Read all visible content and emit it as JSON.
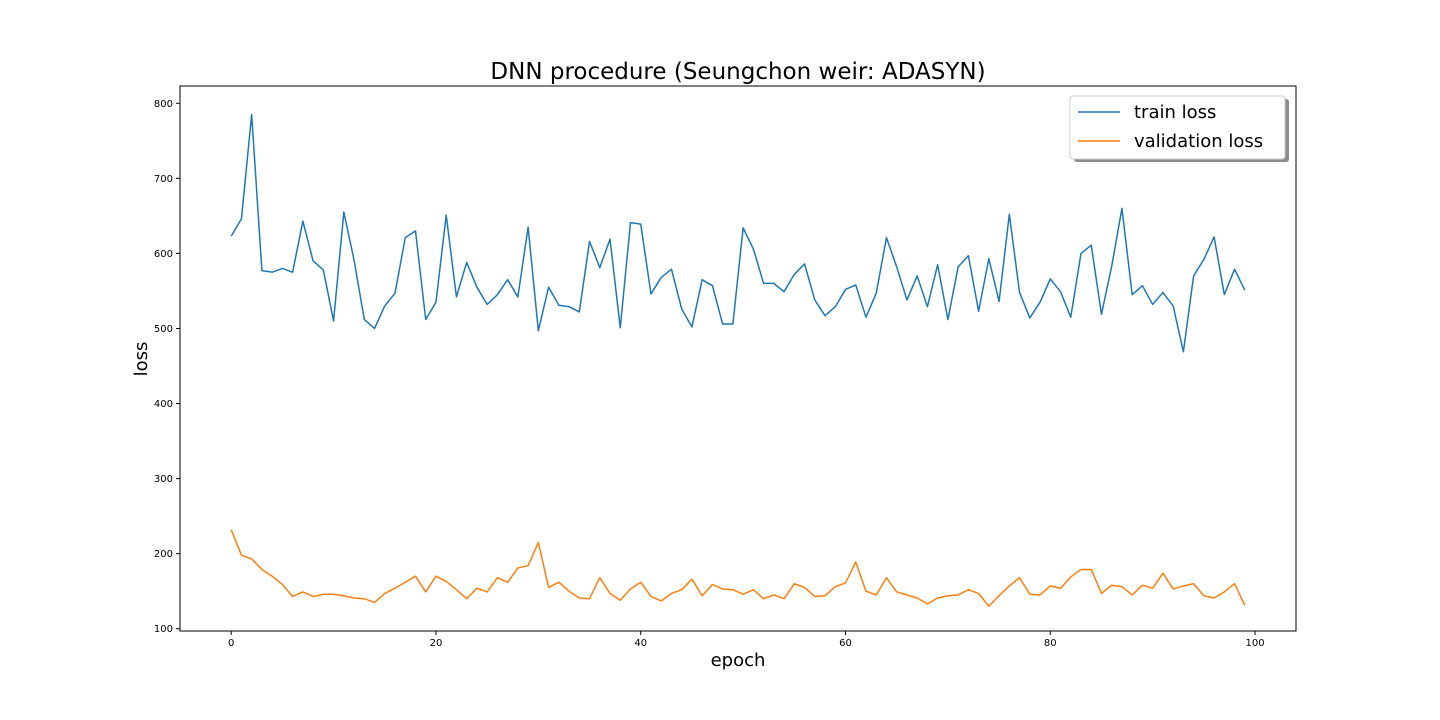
{
  "chart_data": {
    "type": "line",
    "title": "DNN procedure (Seungchon weir: ADASYN)",
    "xlabel": "epoch",
    "ylabel": "loss",
    "xlim": [
      -5,
      104
    ],
    "ylim": [
      97,
      823
    ],
    "xticks": [
      0,
      20,
      40,
      60,
      80,
      100
    ],
    "yticks": [
      100,
      200,
      300,
      400,
      500,
      600,
      700,
      800
    ],
    "grid": false,
    "legend": "top-right",
    "series": [
      {
        "name": "train loss",
        "color": "#1f77b4",
        "values": [
          623,
          646,
          785,
          577,
          575,
          580,
          575,
          643,
          590,
          578,
          510,
          655,
          591,
          512,
          500,
          530,
          547,
          621,
          630,
          512,
          535,
          651,
          542,
          588,
          555,
          532,
          545,
          565,
          542,
          635,
          497,
          555,
          531,
          529,
          522,
          616,
          581,
          619,
          501,
          641,
          639,
          546,
          568,
          579,
          526,
          502,
          565,
          557,
          506,
          506,
          634,
          606,
          560,
          560,
          549,
          572,
          586,
          538,
          517,
          529,
          552,
          558,
          515,
          547,
          621,
          582,
          538,
          570,
          529,
          585,
          512,
          582,
          597,
          523,
          593,
          536,
          652,
          548,
          514,
          535,
          566,
          549,
          515,
          600,
          611,
          519,
          583,
          660,
          545,
          557,
          532,
          548,
          530,
          469,
          570,
          592,
          622,
          545,
          579,
          551
        ]
      },
      {
        "name": "validation loss",
        "color": "#ff7f0e",
        "values": [
          232,
          198,
          193,
          179,
          170,
          159,
          143,
          149,
          143,
          146,
          146,
          144,
          141,
          140,
          135,
          147,
          154,
          162,
          170,
          149,
          170,
          163,
          152,
          140,
          154,
          149,
          168,
          162,
          181,
          184,
          215,
          155,
          162,
          150,
          141,
          140,
          168,
          147,
          138,
          153,
          162,
          143,
          137,
          147,
          152,
          166,
          144,
          159,
          153,
          152,
          146,
          152,
          140,
          145,
          140,
          160,
          155,
          143,
          144,
          156,
          161,
          189,
          150,
          145,
          168,
          149,
          145,
          141,
          133,
          141,
          144,
          145,
          152,
          147,
          130,
          144,
          157,
          168,
          146,
          145,
          157,
          154,
          169,
          179,
          179,
          147,
          158,
          156,
          145,
          158,
          154,
          174,
          153,
          157,
          160,
          144,
          141,
          149,
          160,
          131
        ]
      }
    ]
  }
}
